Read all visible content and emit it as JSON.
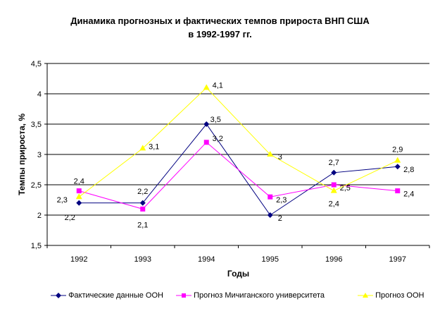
{
  "chart_data": {
    "type": "line",
    "title": "Динамика прогнозных и фактических темпов прироста ВНП США",
    "subtitle": "в 1992-1997 гг.",
    "xlabel": "Годы",
    "ylabel": "Темпы прироста, %",
    "categories": [
      "1992",
      "1993",
      "1994",
      "1995",
      "1996",
      "1997"
    ],
    "ylim": [
      1.5,
      4.5
    ],
    "yticks": [
      "1,5",
      "2",
      "2,5",
      "3",
      "3,5",
      "4",
      "4,5"
    ],
    "grid": true,
    "legend": "bottom",
    "series": [
      {
        "name": "Фактические данные ООН",
        "color": "#000080",
        "marker": "diamond",
        "values": [
          2.2,
          2.2,
          3.5,
          2.0,
          2.7,
          2.8
        ],
        "labels": [
          "2,2",
          "2,2",
          "3,5",
          "2",
          "2,7",
          "2,8"
        ]
      },
      {
        "name": "Прогноз Мичиганского университета",
        "color": "#ff00ff",
        "marker": "square",
        "values": [
          2.4,
          2.1,
          3.2,
          2.3,
          2.5,
          2.4
        ],
        "labels": [
          "2,4",
          "2,1",
          "3,2",
          "2,3",
          "2,5",
          "2,4"
        ]
      },
      {
        "name": "Прогноз ООН",
        "color": "#ffff00",
        "marker": "triangle",
        "values": [
          2.3,
          3.1,
          4.1,
          3.0,
          2.4,
          2.9
        ],
        "labels": [
          "2,3",
          "3,1",
          "4,1",
          "3",
          "2,4",
          "2,9"
        ]
      }
    ]
  }
}
